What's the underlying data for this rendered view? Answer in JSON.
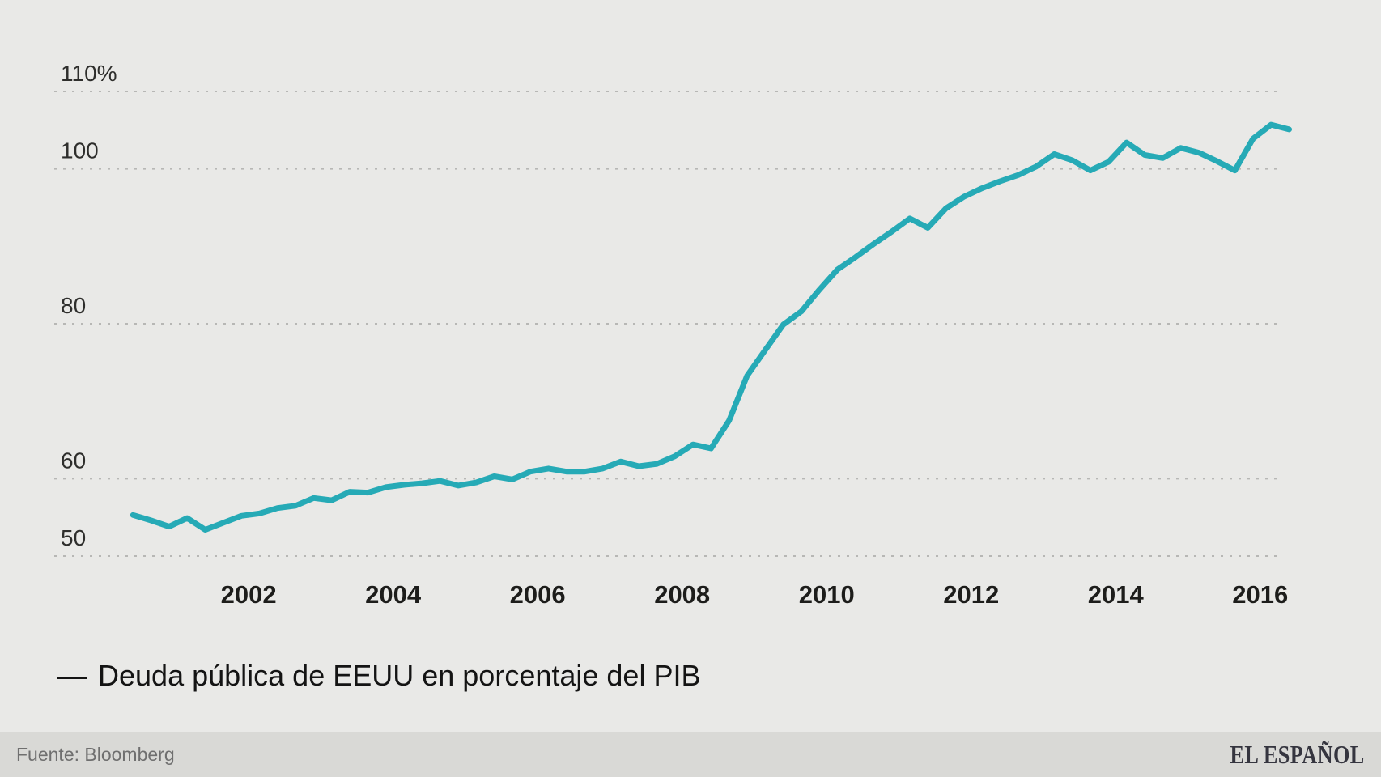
{
  "chart_data": {
    "type": "line",
    "title": "",
    "xlabel": "",
    "ylabel": "",
    "grid": "horizontal-dashed",
    "legend_position": "bottom-left",
    "xlim": [
      1999.31,
      2016.26
    ],
    "ylim": [
      50,
      110
    ],
    "x_ticks": [
      2002,
      2004,
      2006,
      2008,
      2010,
      2012,
      2014,
      2016
    ],
    "x_tick_labels": [
      "2002",
      "2004",
      "2006",
      "2008",
      "2010",
      "2012",
      "2014",
      "2016"
    ],
    "y_ticks": [
      110,
      100,
      80,
      60,
      50
    ],
    "y_tick_labels": [
      "110%",
      "100",
      "80",
      "60",
      "50"
    ],
    "series": [
      {
        "name": "Deuda pública de EEUU en porcentaje del PIB",
        "color": "#26aab6",
        "x": [
          2000.4,
          2000.65,
          2000.9,
          2001.15,
          2001.4,
          2001.65,
          2001.9,
          2002.15,
          2002.4,
          2002.65,
          2002.9,
          2003.15,
          2003.4,
          2003.65,
          2003.9,
          2004.15,
          2004.4,
          2004.65,
          2004.9,
          2005.15,
          2005.4,
          2005.65,
          2005.9,
          2006.15,
          2006.4,
          2006.65,
          2006.9,
          2007.15,
          2007.4,
          2007.65,
          2007.9,
          2008.15,
          2008.4,
          2008.65,
          2008.9,
          2009.15,
          2009.4,
          2009.65,
          2009.9,
          2010.15,
          2010.4,
          2010.65,
          2010.9,
          2011.15,
          2011.4,
          2011.65,
          2011.9,
          2012.15,
          2012.4,
          2012.65,
          2012.9,
          2013.15,
          2013.4,
          2013.65,
          2013.9,
          2014.15,
          2014.4,
          2014.65,
          2014.9,
          2015.15,
          2015.4,
          2015.65,
          2015.9,
          2016.15,
          2016.4
        ],
        "values": [
          55.3,
          54.6,
          53.8,
          54.9,
          53.4,
          54.3,
          55.2,
          55.5,
          56.2,
          56.5,
          57.5,
          57.2,
          58.3,
          58.2,
          58.9,
          59.2,
          59.4,
          59.7,
          59.1,
          59.5,
          60.3,
          59.9,
          60.9,
          61.3,
          60.9,
          60.9,
          61.3,
          62.2,
          61.6,
          61.9,
          62.9,
          64.4,
          63.9,
          67.5,
          73.3,
          76.6,
          79.9,
          81.6,
          84.4,
          87.0,
          88.6,
          90.3,
          91.9,
          93.6,
          92.4,
          94.9,
          96.4,
          97.5,
          98.4,
          99.2,
          100.3,
          101.9,
          101.1,
          99.8,
          100.9,
          103.4,
          101.8,
          101.4,
          102.7,
          102.1,
          101.0,
          99.8,
          103.9,
          105.7,
          105.1
        ]
      }
    ]
  },
  "legend": {
    "marker": "—",
    "label": "Deuda pública de EEUU en porcentaje del PIB"
  },
  "footer": {
    "source": "Fuente: Bloomberg",
    "brand": "EL ESPAÑOL"
  },
  "colors": {
    "background": "#e9e9e7",
    "footer_background": "#d9d9d6",
    "line": "#26aab6",
    "gridline": "#b7b7b5",
    "axis_text": "#2e2e2c",
    "source_text": "#6f6f6f",
    "brand_text": "#35353f"
  }
}
